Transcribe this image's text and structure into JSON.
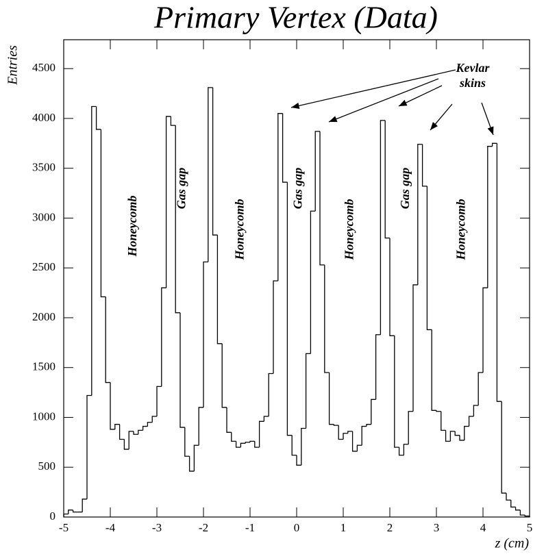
{
  "chart_data": {
    "type": "histogram",
    "title": "Primary Vertex (Data)",
    "x_label": "z (cm)",
    "y_label": "Entries",
    "annotations": [
      "Kevlar skins",
      "Honeycomb",
      "Gas gap",
      "Honeycomb",
      "Gas gap",
      "Honeycomb",
      "Gas gap",
      "Honeycomb"
    ],
    "bins": [
      -5,
      -4.9,
      -4.8,
      -4.7,
      -4.6,
      -4.5,
      -4.4,
      -4.3,
      -4.2,
      -4.1,
      -4,
      -3.9,
      -3.8,
      -3.7,
      -3.6,
      -3.5,
      -3.4,
      -3.3,
      -3.2,
      -3.1,
      -3,
      -2.9,
      -2.8,
      -2.7,
      -2.6,
      -2.5,
      -2.4,
      -2.3,
      -2.2,
      -2.1,
      -2,
      -1.9,
      -1.8,
      -1.7,
      -1.6,
      -1.5,
      -1.4,
      -1.3,
      -1.2,
      -1.1,
      -1,
      -0.9,
      -0.8,
      -0.7,
      -0.6,
      -0.5,
      -0.4,
      -0.3,
      -0.2,
      -0.1,
      0,
      0.1,
      0.2,
      0.3,
      0.4,
      0.5,
      0.6,
      0.7,
      0.8,
      0.9,
      1,
      1.1,
      1.2,
      1.3,
      1.4,
      1.5,
      1.6,
      1.7,
      1.8,
      1.9,
      2,
      2.1,
      2.2,
      2.3,
      2.4,
      2.5,
      2.6,
      2.7,
      2.8,
      2.9,
      3,
      3.1,
      3.2,
      3.3,
      3.4,
      3.5,
      3.6,
      3.7,
      3.8,
      3.9,
      4,
      4.1,
      4.2,
      4.3,
      4.4,
      4.5,
      4.6,
      4.7,
      4.8,
      4.9,
      5
    ],
    "values": [
      30,
      70,
      50,
      50,
      180,
      1220,
      4120,
      3890,
      2210,
      1350,
      880,
      930,
      780,
      680,
      860,
      830,
      870,
      910,
      950,
      1010,
      1310,
      2300,
      4020,
      3930,
      2050,
      900,
      610,
      460,
      720,
      1100,
      2560,
      4310,
      2830,
      1740,
      1100,
      850,
      760,
      700,
      740,
      750,
      760,
      700,
      960,
      1010,
      1440,
      2370,
      4050,
      3360,
      820,
      620,
      520,
      890,
      1640,
      3070,
      3870,
      2530,
      1450,
      930,
      920,
      780,
      840,
      860,
      660,
      720,
      910,
      930,
      1180,
      1830,
      3980,
      2800,
      1820,
      700,
      620,
      730,
      1060,
      2330,
      3740,
      3320,
      1880,
      1070,
      1060,
      870,
      760,
      860,
      820,
      770,
      910,
      1010,
      1120,
      1450,
      2300,
      3720,
      3750,
      1160,
      240,
      170,
      100,
      70,
      20,
      10
    ],
    "color": "#000000",
    "xlim": [
      -5,
      5
    ],
    "ylim": [
      0,
      4790
    ],
    "xticks": [
      -5,
      -4,
      -3,
      -2,
      -1,
      0,
      1,
      2,
      3,
      4,
      5
    ],
    "yticks": [
      0,
      500,
      1000,
      1500,
      2000,
      2500,
      3000,
      3500,
      4000,
      4500
    ]
  }
}
